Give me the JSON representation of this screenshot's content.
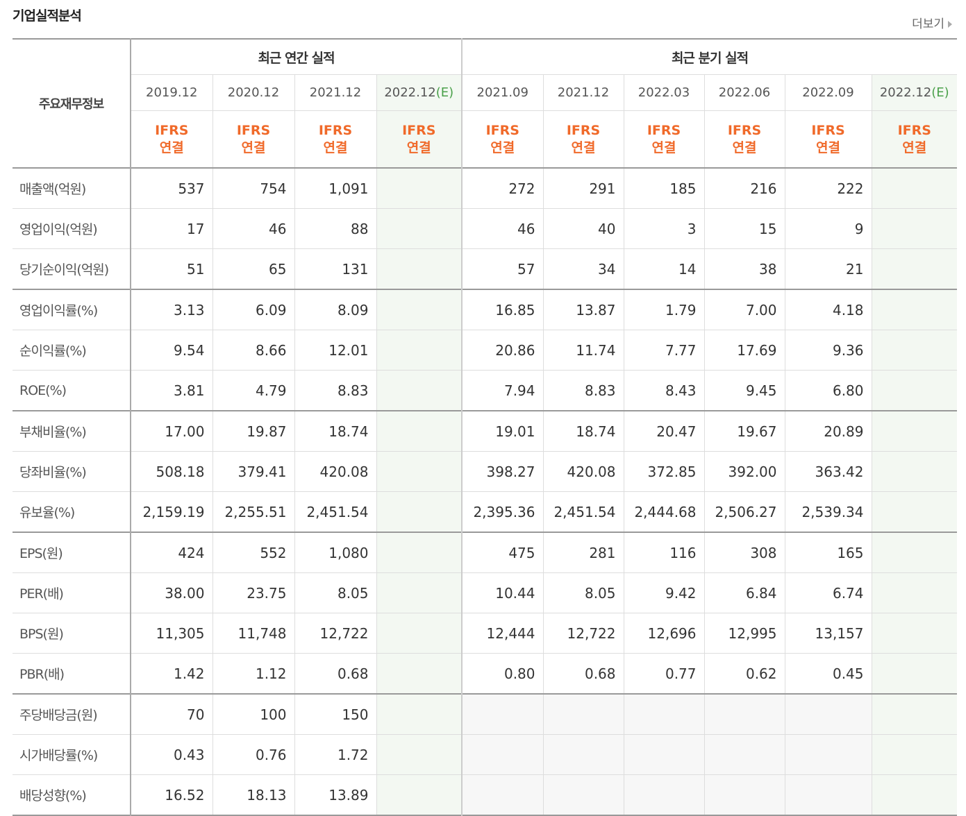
{
  "header": {
    "title": "기업실적분석",
    "more": "더보기"
  },
  "table": {
    "row_header": "주요재무정보",
    "groups": [
      {
        "label": "최근 연간 실적",
        "columns": [
          {
            "period": "2019.12",
            "accounting": "IFRS",
            "consolidation": "연결"
          },
          {
            "period": "2020.12",
            "accounting": "IFRS",
            "consolidation": "연결"
          },
          {
            "period": "2021.12",
            "accounting": "IFRS",
            "consolidation": "연결"
          },
          {
            "period": "2022.12",
            "estimate": "(E)",
            "accounting": "IFRS",
            "consolidation": "연결"
          }
        ]
      },
      {
        "label": "최근 분기 실적",
        "columns": [
          {
            "period": "2021.09",
            "accounting": "IFRS",
            "consolidation": "연결"
          },
          {
            "period": "2021.12",
            "accounting": "IFRS",
            "consolidation": "연결"
          },
          {
            "period": "2022.03",
            "accounting": "IFRS",
            "consolidation": "연결"
          },
          {
            "period": "2022.06",
            "accounting": "IFRS",
            "consolidation": "연결"
          },
          {
            "period": "2022.09",
            "accounting": "IFRS",
            "consolidation": "연결"
          },
          {
            "period": "2022.12",
            "estimate": "(E)",
            "accounting": "IFRS",
            "consolidation": "연결"
          }
        ]
      }
    ],
    "row_groups": [
      [
        {
          "label": "매출액(억원)",
          "values": [
            "537",
            "754",
            "1,091",
            null,
            "272",
            "291",
            "185",
            "216",
            "222",
            null
          ]
        },
        {
          "label": "영업이익(억원)",
          "values": [
            "17",
            "46",
            "88",
            null,
            "46",
            "40",
            "3",
            "15",
            "9",
            null
          ]
        },
        {
          "label": "당기순이익(억원)",
          "values": [
            "51",
            "65",
            "131",
            null,
            "57",
            "34",
            "14",
            "38",
            "21",
            null
          ]
        }
      ],
      [
        {
          "label": "영업이익률(%)",
          "values": [
            "3.13",
            "6.09",
            "8.09",
            null,
            "16.85",
            "13.87",
            "1.79",
            "7.00",
            "4.18",
            null
          ]
        },
        {
          "label": "순이익률(%)",
          "values": [
            "9.54",
            "8.66",
            "12.01",
            null,
            "20.86",
            "11.74",
            "7.77",
            "17.69",
            "9.36",
            null
          ]
        },
        {
          "label": "ROE(%)",
          "values": [
            "3.81",
            "4.79",
            "8.83",
            null,
            "7.94",
            "8.83",
            "8.43",
            "9.45",
            "6.80",
            null
          ]
        }
      ],
      [
        {
          "label": "부채비율(%)",
          "values": [
            "17.00",
            "19.87",
            "18.74",
            null,
            "19.01",
            "18.74",
            "20.47",
            "19.67",
            "20.89",
            null
          ]
        },
        {
          "label": "당좌비율(%)",
          "values": [
            "508.18",
            "379.41",
            "420.08",
            null,
            "398.27",
            "420.08",
            "372.85",
            "392.00",
            "363.42",
            null
          ]
        },
        {
          "label": "유보율(%)",
          "values": [
            "2,159.19",
            "2,255.51",
            "2,451.54",
            null,
            "2,395.36",
            "2,451.54",
            "2,444.68",
            "2,506.27",
            "2,539.34",
            null
          ]
        }
      ],
      [
        {
          "label": "EPS(원)",
          "values": [
            "424",
            "552",
            "1,080",
            null,
            "475",
            "281",
            "116",
            "308",
            "165",
            null
          ]
        },
        {
          "label": "PER(배)",
          "values": [
            "38.00",
            "23.75",
            "8.05",
            null,
            "10.44",
            "8.05",
            "9.42",
            "6.84",
            "6.74",
            null
          ]
        },
        {
          "label": "BPS(원)",
          "values": [
            "11,305",
            "11,748",
            "12,722",
            null,
            "12,444",
            "12,722",
            "12,696",
            "12,995",
            "13,157",
            null
          ]
        },
        {
          "label": "PBR(배)",
          "values": [
            "1.42",
            "1.12",
            "0.68",
            null,
            "0.80",
            "0.68",
            "0.77",
            "0.62",
            "0.45",
            null
          ]
        }
      ],
      [
        {
          "label": "주당배당금(원)",
          "values": [
            "70",
            "100",
            "150",
            null,
            null,
            null,
            null,
            null,
            null,
            null
          ]
        },
        {
          "label": "시가배당률(%)",
          "values": [
            "0.43",
            "0.76",
            "1.72",
            null,
            null,
            null,
            null,
            null,
            null,
            null
          ]
        },
        {
          "label": "배당성향(%)",
          "values": [
            "16.52",
            "18.13",
            "13.89",
            null,
            null,
            null,
            null,
            null,
            null,
            null
          ]
        }
      ]
    ]
  }
}
